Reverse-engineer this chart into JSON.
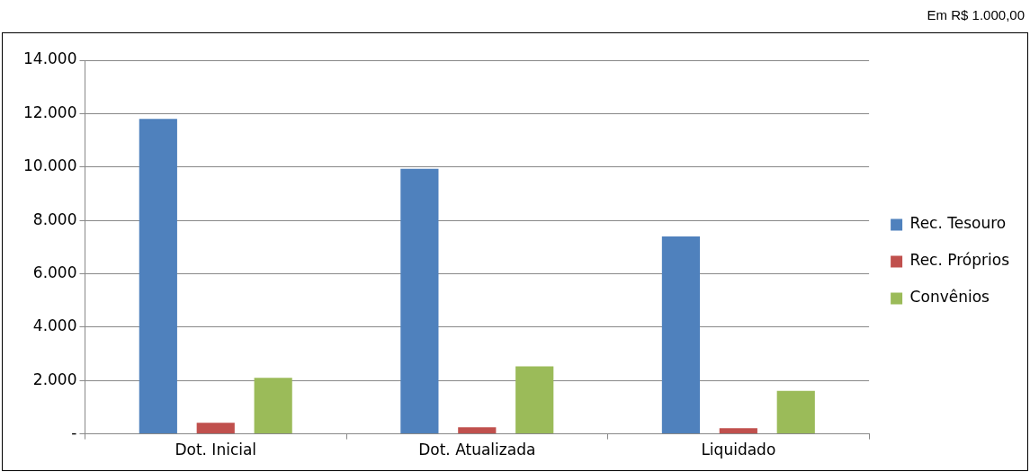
{
  "chart_data": {
    "type": "bar",
    "categories": [
      "Dot. Inicial",
      "Dot. Atualizada",
      "Liquidado"
    ],
    "series": [
      {
        "name": "Rec. Tesouro",
        "color": "#4f81bd",
        "values": [
          11800,
          9930,
          7400
        ]
      },
      {
        "name": "Rec. Próprios",
        "color": "#c0504d",
        "values": [
          420,
          250,
          210
        ]
      },
      {
        "name": "Convênios",
        "color": "#9bbb59",
        "values": [
          2100,
          2530,
          1610
        ]
      }
    ],
    "ylim": [
      0,
      14000
    ],
    "yticks": [
      {
        "value": 0,
        "label": "-"
      },
      {
        "value": 2000,
        "label": "2.000"
      },
      {
        "value": 4000,
        "label": "4.000"
      },
      {
        "value": 6000,
        "label": "6.000"
      },
      {
        "value": 8000,
        "label": "8.000"
      },
      {
        "value": 10000,
        "label": "10.000"
      },
      {
        "value": 12000,
        "label": "12.000"
      },
      {
        "value": 14000,
        "label": "14.000"
      }
    ],
    "grid": "y",
    "legend": "right",
    "annotations": [
      "Em R$ 1.000,00"
    ]
  }
}
